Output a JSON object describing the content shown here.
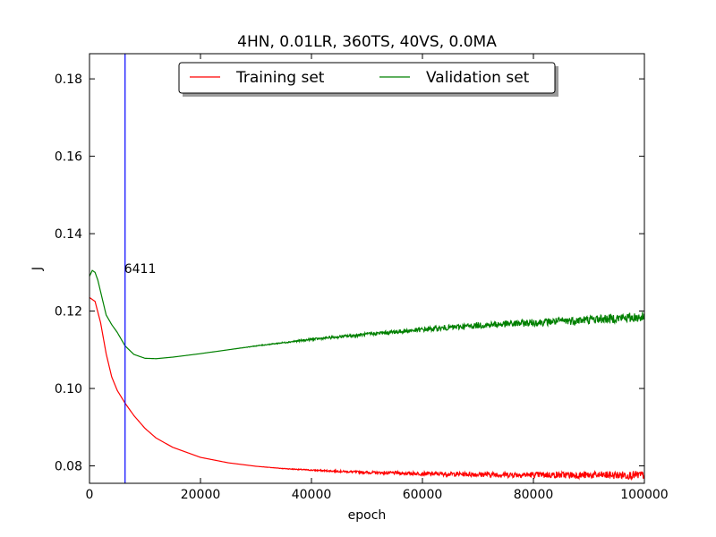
{
  "chart_data": {
    "type": "line",
    "title": "4HN, 0.01LR, 360TS, 40VS, 0.0MA",
    "xlabel": "epoch",
    "ylabel": "J",
    "xlim": [
      0,
      100000
    ],
    "ylim": [
      0.0755,
      0.1865
    ],
    "x_ticks": [
      0,
      20000,
      40000,
      60000,
      80000,
      100000
    ],
    "x_tick_labels": [
      "0",
      "20000",
      "40000",
      "60000",
      "80000",
      "100000"
    ],
    "y_ticks": [
      0.08,
      0.1,
      0.12,
      0.14,
      0.16,
      0.18
    ],
    "y_tick_labels": [
      "0.08",
      "0.10",
      "0.12",
      "0.14",
      "0.16",
      "0.18"
    ],
    "grid": false,
    "legend": {
      "placement": "top-center",
      "columns": 2
    },
    "series": [
      {
        "name": "Training set",
        "color": "#ff0000",
        "x": [
          0,
          1000,
          2000,
          3000,
          4000,
          5000,
          6411,
          8000,
          10000,
          12000,
          15000,
          20000,
          25000,
          30000,
          35000,
          40000,
          50000,
          60000,
          70000,
          80000,
          90000,
          100000
        ],
        "y": [
          0.1235,
          0.1225,
          0.117,
          0.109,
          0.103,
          0.0995,
          0.0962,
          0.093,
          0.0897,
          0.0872,
          0.0848,
          0.0822,
          0.0808,
          0.0799,
          0.0793,
          0.0789,
          0.0783,
          0.078,
          0.0778,
          0.0777,
          0.0776,
          0.0776
        ],
        "noise_start": 30000,
        "noise_end_amplitude": 0.0011
      },
      {
        "name": "Validation set",
        "color": "#008000",
        "x": [
          0,
          500,
          1000,
          1500,
          2000,
          3000,
          4000,
          5000,
          6411,
          8000,
          10000,
          12000,
          15000,
          20000,
          25000,
          30000,
          40000,
          50000,
          60000,
          70000,
          80000,
          90000,
          100000
        ],
        "y": [
          0.129,
          0.1305,
          0.13,
          0.128,
          0.125,
          0.119,
          0.1165,
          0.1145,
          0.111,
          0.1088,
          0.1078,
          0.1077,
          0.1081,
          0.109,
          0.11,
          0.111,
          0.1127,
          0.114,
          0.1152,
          0.1163,
          0.117,
          0.1178,
          0.1185
        ],
        "noise_start": 25000,
        "noise_end_amplitude": 0.0013
      }
    ],
    "vline": {
      "x": 6411,
      "color": "#0000ff",
      "label": "6411",
      "label_y": 0.131
    }
  }
}
